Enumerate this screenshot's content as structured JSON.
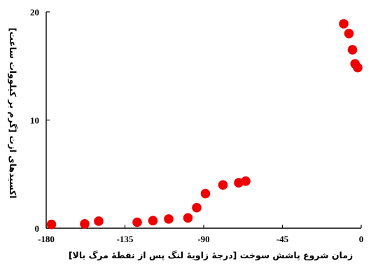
{
  "chart_data": {
    "type": "scatter",
    "title": "",
    "xlabel": "زمان شروع پاشش سوخت [درجهٔ زاویهٔ لنگ پس از نقطهٔ مرگ بالا]",
    "ylabel": "اکسیدهای ازت [گرم بر کیلووات ساعت]",
    "xlim": [
      -180,
      0
    ],
    "ylim": [
      0,
      20
    ],
    "xticks": [
      "-180",
      "-135",
      "-90",
      "-45",
      "0"
    ],
    "xtick_values": [
      -180,
      -135,
      -90,
      -45,
      0
    ],
    "yticks": [
      "0",
      "10",
      "20"
    ],
    "ytick_values": [
      0,
      10,
      20
    ],
    "grid": false,
    "marker_color": "#ee0000",
    "series": [
      {
        "points": [
          {
            "x": -177,
            "y": 0.35
          },
          {
            "x": -158,
            "y": 0.4
          },
          {
            "x": -150,
            "y": 0.65
          },
          {
            "x": -128,
            "y": 0.55
          },
          {
            "x": -119,
            "y": 0.7
          },
          {
            "x": -110,
            "y": 0.85
          },
          {
            "x": -99,
            "y": 0.95
          },
          {
            "x": -94,
            "y": 1.9
          },
          {
            "x": -89,
            "y": 3.2
          },
          {
            "x": -79,
            "y": 4.0
          },
          {
            "x": -70,
            "y": 4.2
          },
          {
            "x": -66,
            "y": 4.35
          },
          {
            "x": -10,
            "y": 18.9
          },
          {
            "x": -7,
            "y": 18.0
          },
          {
            "x": -5,
            "y": 16.5
          },
          {
            "x": -3.5,
            "y": 15.2
          },
          {
            "x": -2,
            "y": 14.85
          }
        ]
      }
    ]
  }
}
